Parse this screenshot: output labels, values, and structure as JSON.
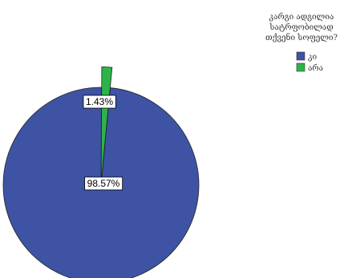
{
  "chart_data": {
    "type": "pie",
    "categories": [
      "კი",
      "არა"
    ],
    "values": [
      98.57,
      1.43
    ],
    "unit": "%",
    "data_labels": [
      "98.57%",
      "1.43%"
    ],
    "legend_title_lines": [
      "კარგი ადგილია",
      "სატრფობილად",
      "თქვენი სოფელი?"
    ],
    "legend_position": "top-right",
    "colors": [
      "#3e53a4",
      "#2db34a"
    ],
    "exploded_slice": "არა"
  }
}
